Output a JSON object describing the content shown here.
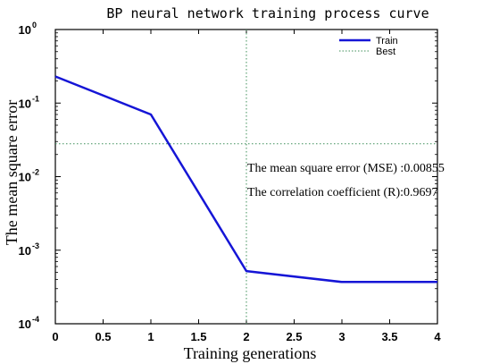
{
  "chart_data": {
    "type": "line",
    "title": "BP neural network training process curve",
    "xlabel": "Training generations",
    "ylabel": "The mean square error",
    "xlim": [
      0,
      4
    ],
    "ylim": [
      0.0001,
      1
    ],
    "yscale": "log",
    "grid": false,
    "legend_position": "top-right",
    "x_ticks": [
      "0",
      "0.5",
      "1",
      "1.5",
      "2",
      "2.5",
      "3",
      "3.5",
      "4"
    ],
    "y_ticks": [
      {
        "base": "10",
        "exp": "0"
      },
      {
        "base": "10",
        "exp": "-1"
      },
      {
        "base": "10",
        "exp": "-2"
      },
      {
        "base": "10",
        "exp": "-3"
      },
      {
        "base": "10",
        "exp": "-4"
      }
    ],
    "series": [
      {
        "name": "Train",
        "color": "#1515d6",
        "x": [
          0,
          1,
          2,
          3,
          4
        ],
        "y": [
          0.23,
          0.07,
          0.00052,
          0.00037,
          0.00037
        ]
      }
    ],
    "best": {
      "name": "Best",
      "x": 2,
      "y": 0.028,
      "color": "#3f8f5a"
    },
    "annotations": [
      "The mean square error (MSE) :0.00855",
      "The correlation coefficient (R):0.9697"
    ]
  }
}
